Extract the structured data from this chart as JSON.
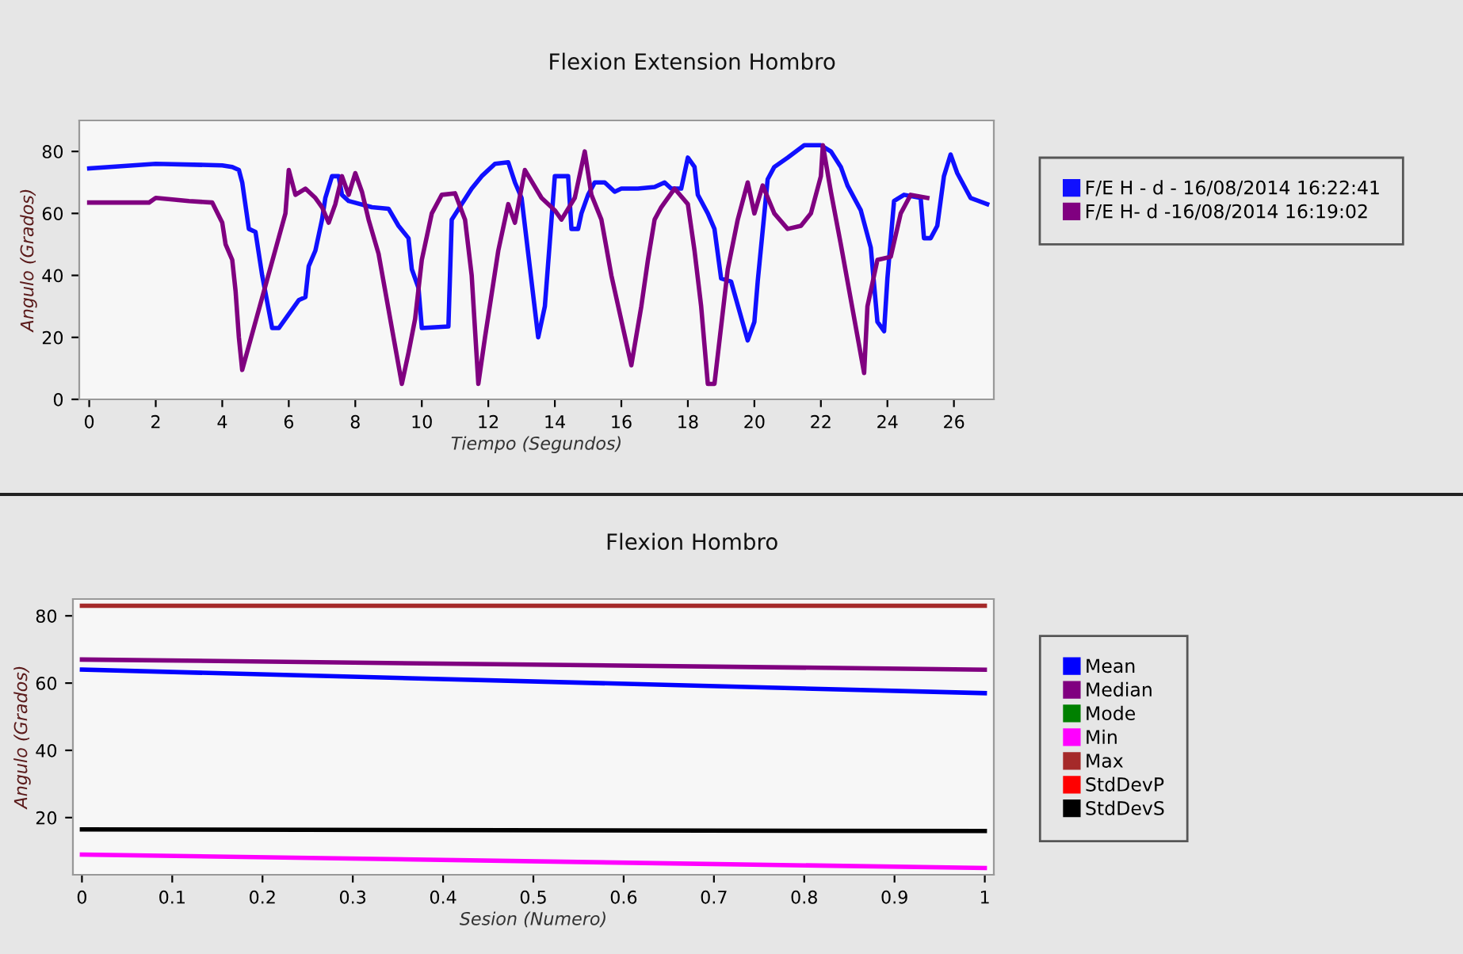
{
  "chart_data": [
    {
      "type": "line",
      "title": "Flexion Extension Hombro",
      "xlabel": "Tiempo (Segundos)",
      "ylabel": "Angulo (Grados)",
      "xlim": [
        -0.3,
        27.2
      ],
      "ylim": [
        0,
        90
      ],
      "xticks": [
        0,
        2,
        4,
        6,
        8,
        10,
        12,
        14,
        16,
        18,
        20,
        22,
        24,
        26
      ],
      "yticks": [
        0,
        20,
        40,
        60,
        80
      ],
      "grid": false,
      "legend": "right",
      "marker": "none",
      "line_style": "solid",
      "series": [
        {
          "name": "F/E H - d - 16/08/2014 16:22:41",
          "color": "#1010ff",
          "x": [
            0,
            2,
            4,
            4.3,
            4.5,
            4.6,
            4.8,
            5.0,
            5.2,
            5.5,
            5.7,
            6.3,
            6.5,
            6.6,
            6.8,
            7.0,
            7.1,
            7.3,
            7.5,
            7.6,
            7.8,
            8.5,
            9.0,
            9.3,
            9.6,
            9.7,
            9.9,
            10.0,
            10.8,
            10.9,
            11.2,
            11.5,
            11.8,
            12.2,
            12.6,
            12.8,
            13.0,
            13.2,
            13.5,
            13.7,
            14.0,
            14.4,
            14.5,
            14.7,
            14.8,
            15.0,
            15.2,
            15.5,
            15.8,
            16.0,
            16.5,
            17.0,
            17.3,
            17.5,
            17.8,
            18.0,
            18.2,
            18.3,
            18.6,
            18.8,
            19.0,
            19.3,
            19.8,
            20.0,
            20.1,
            20.4,
            20.6,
            21.0,
            21.5,
            22.0,
            22.3,
            22.6,
            22.8,
            23.2,
            23.5,
            23.7,
            23.9,
            24.0,
            24.2,
            24.5,
            25.0,
            25.1,
            25.3,
            25.5,
            25.7,
            25.9,
            26.1,
            26.5,
            27.0
          ],
          "values": [
            74.5,
            76,
            75.5,
            75,
            74,
            70,
            55,
            54,
            40,
            23,
            23,
            32,
            33,
            43,
            48,
            58,
            65,
            72,
            72,
            66,
            64,
            62,
            61.5,
            56,
            52,
            42,
            36,
            23,
            23.5,
            58,
            63,
            68,
            72,
            76,
            76.5,
            70,
            65,
            47,
            20,
            30,
            72,
            72,
            55,
            55,
            60,
            66,
            70,
            70,
            67,
            68,
            68,
            68.5,
            70,
            68,
            68,
            78,
            75,
            66,
            60,
            55,
            39,
            38,
            19,
            25,
            38,
            71,
            75,
            78,
            82,
            82,
            80,
            75,
            69,
            61,
            49,
            25,
            22,
            39,
            64,
            66,
            65,
            52,
            52,
            56,
            72,
            79,
            73,
            65,
            63
          ]
        },
        {
          "name": "F/E H- d -16/08/2014 16:19:02",
          "color": "#800080",
          "x": [
            0,
            1.8,
            2.0,
            3.0,
            3.7,
            4.0,
            4.1,
            4.3,
            4.4,
            4.5,
            4.6,
            5.9,
            6.0,
            6.2,
            6.5,
            6.8,
            7.0,
            7.2,
            7.4,
            7.6,
            7.8,
            8.0,
            8.2,
            8.4,
            8.7,
            9.4,
            9.6,
            9.8,
            10.0,
            10.3,
            10.6,
            11.0,
            11.3,
            11.5,
            11.7,
            11.9,
            12.3,
            12.6,
            12.8,
            13.1,
            13.6,
            14.0,
            14.2,
            14.6,
            14.9,
            15.1,
            15.4,
            15.7,
            16.3,
            16.6,
            16.8,
            17.0,
            17.2,
            17.6,
            18.0,
            18.2,
            18.4,
            18.6,
            18.8,
            19.2,
            19.5,
            19.8,
            20.0,
            20.25,
            20.6,
            21.0,
            21.4,
            21.7,
            22.0,
            22.06,
            22.3,
            22.6,
            23.3,
            23.4,
            23.7,
            24.1,
            24.4,
            24.7,
            25.2
          ],
          "values": [
            63.5,
            63.5,
            65,
            64,
            63.5,
            57,
            50,
            45,
            35,
            20,
            9.5,
            60,
            74,
            66,
            68,
            65,
            62,
            57,
            63,
            72,
            66,
            73,
            67,
            58,
            47,
            5,
            15,
            26,
            45,
            60,
            66,
            66.5,
            58,
            40,
            5,
            20,
            48,
            63,
            57,
            74,
            65,
            61,
            58,
            65,
            80,
            66,
            58,
            40,
            11,
            30,
            45,
            58,
            62,
            68,
            63,
            48,
            30,
            5,
            5,
            42,
            58,
            70,
            60,
            69,
            60,
            55,
            56,
            60,
            72,
            82,
            67,
            50,
            8.5,
            30,
            45,
            46,
            60,
            66,
            65
          ]
        }
      ]
    },
    {
      "type": "line",
      "title": "Flexion Hombro",
      "xlabel": "Sesion (Numero)",
      "ylabel": "Angulo (Grados)",
      "x": [
        0,
        1
      ],
      "xlim": [
        -0.01,
        1.01
      ],
      "ylim": [
        3,
        85
      ],
      "xticks": [
        0,
        0.1,
        0.2,
        0.3,
        0.4,
        0.5,
        0.6,
        0.7,
        0.8,
        0.9,
        1
      ],
      "yticks": [
        20,
        40,
        60,
        80
      ],
      "grid": false,
      "legend": "right",
      "marker": "none",
      "line_style": "solid",
      "series": [
        {
          "name": "Mean",
          "color": "#0000ff",
          "values": [
            64,
            57
          ]
        },
        {
          "name": "Median",
          "color": "#800080",
          "values": [
            67,
            64
          ]
        },
        {
          "name": "Mode",
          "color": "#008000",
          "values": [
            null,
            null
          ]
        },
        {
          "name": "Min",
          "color": "#ff00ff",
          "values": [
            9,
            5
          ]
        },
        {
          "name": "Max",
          "color": "#a52a2a",
          "values": [
            83,
            83
          ]
        },
        {
          "name": "StdDevP",
          "color": "#ff0000",
          "values": [
            null,
            null
          ]
        },
        {
          "name": "StdDevS",
          "color": "#000000",
          "values": [
            16.5,
            16
          ]
        }
      ]
    }
  ]
}
